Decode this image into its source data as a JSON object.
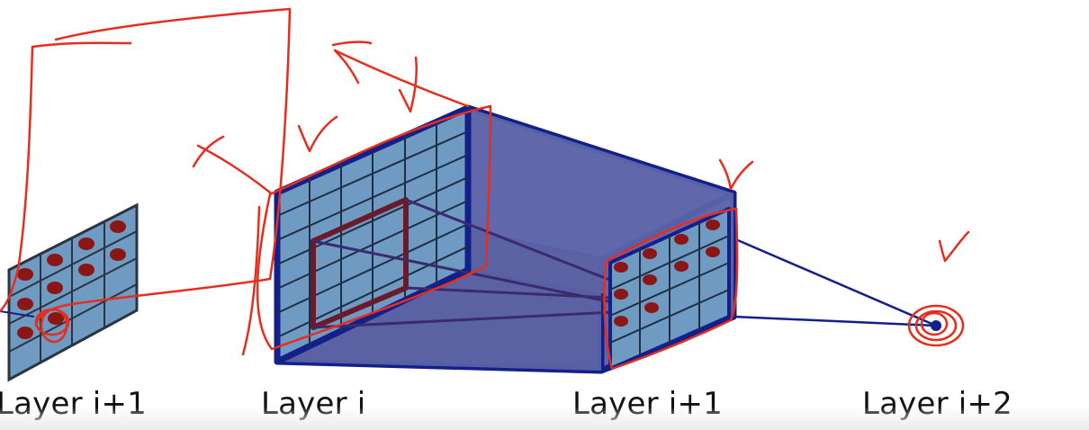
{
  "labels": {
    "left_layer": "Layer i+1",
    "layer_i": "Layer i",
    "layer_i_plus_1": "Layer i+1",
    "layer_i_plus_2": "Layer i+2"
  },
  "colors": {
    "grid_fill": "#6f9ac2",
    "grid_line": "#2b3440",
    "volume_fill": "#5f66a8",
    "volume_edge": "#13208a",
    "dot": "#8a1616",
    "highlight": "#6b1a2c",
    "annotation": "#e52e1d",
    "background": "#ffffff"
  }
}
